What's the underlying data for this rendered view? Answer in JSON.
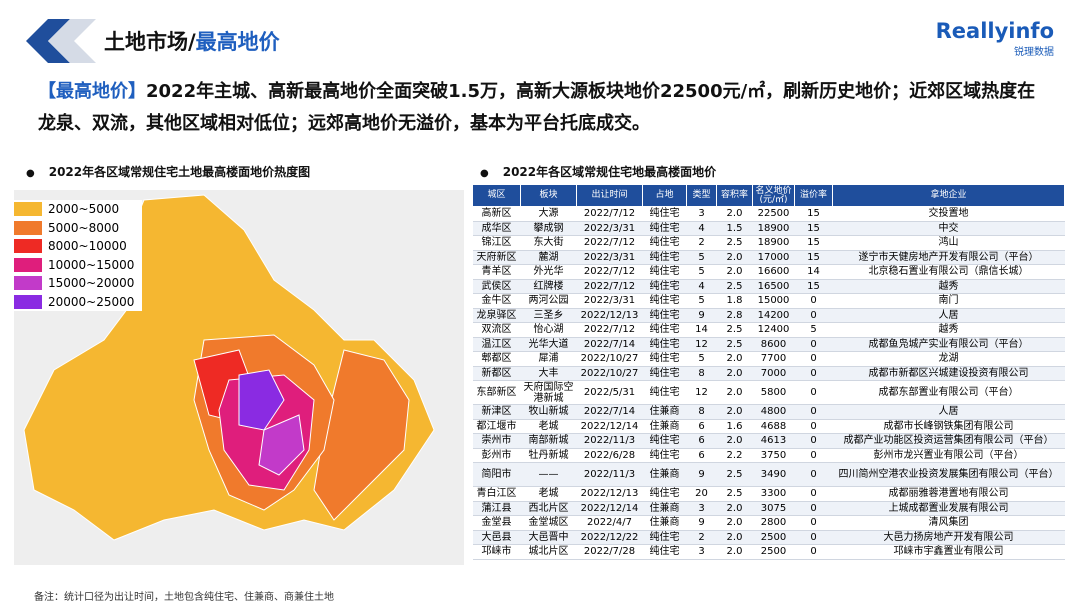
{
  "header": {
    "title_prefix": "土地市场/",
    "title_highlight": "最高地价",
    "logo": "Reallyinfo",
    "logo_sub": "锐理数据"
  },
  "summary": {
    "tag": "【最高地价】",
    "text": "2022年主城、高新最高地价全面突破1.5万，高新大源板块地价22500元/㎡，刷新历史地价；近郊区域热度在龙泉、双流，其他区域相对低位；远郊高地价无溢价，基本为平台托底成交。"
  },
  "map": {
    "title": "2022年各区域常规住宅土地最高楼面地价热度图",
    "legend": [
      {
        "label": "2000~5000",
        "color": "#f5b731"
      },
      {
        "label": "5000~8000",
        "color": "#f07a2c"
      },
      {
        "label": "8000~10000",
        "color": "#ee2a24"
      },
      {
        "label": "10000~15000",
        "color": "#df1e7c"
      },
      {
        "label": "15000~20000",
        "color": "#c23ac9"
      },
      {
        "label": "20000~25000",
        "color": "#8a2be2"
      }
    ]
  },
  "table": {
    "title": "2022年各区域常规住宅地最高楼面地价",
    "headers": [
      "城区",
      "板块",
      "出让时间",
      "占地",
      "类型",
      "容积率",
      "名义地价(元/㎡)",
      "溢价率",
      "拿地企业"
    ],
    "rows": [
      [
        "高新区",
        "大源",
        "2022/7/12",
        "纯住宅",
        "3",
        "2.0",
        "22500",
        "15",
        "交投置地"
      ],
      [
        "成华区",
        "攀成钢",
        "2022/3/31",
        "纯住宅",
        "4",
        "1.5",
        "18900",
        "15",
        "中交"
      ],
      [
        "锦江区",
        "东大街",
        "2022/7/12",
        "纯住宅",
        "2",
        "2.5",
        "18900",
        "15",
        "鸿山"
      ],
      [
        "天府新区",
        "麓湖",
        "2022/3/31",
        "纯住宅",
        "5",
        "2.0",
        "17000",
        "15",
        "遂宁市天健房地产开发有限公司（平台）"
      ],
      [
        "青羊区",
        "外光华",
        "2022/7/12",
        "纯住宅",
        "5",
        "2.0",
        "16600",
        "14",
        "北京稳石置业有限公司（鼎信长城）"
      ],
      [
        "武侯区",
        "红牌楼",
        "2022/7/12",
        "纯住宅",
        "4",
        "2.5",
        "16500",
        "15",
        "越秀"
      ],
      [
        "金牛区",
        "两河公园",
        "2022/3/31",
        "纯住宅",
        "5",
        "1.8",
        "15000",
        "0",
        "南门"
      ],
      [
        "龙泉驿区",
        "三圣乡",
        "2022/12/13",
        "纯住宅",
        "9",
        "2.8",
        "14200",
        "0",
        "人居"
      ],
      [
        "双流区",
        "怡心湖",
        "2022/7/12",
        "纯住宅",
        "14",
        "2.5",
        "12400",
        "5",
        "越秀"
      ],
      [
        "温江区",
        "光华大道",
        "2022/7/14",
        "纯住宅",
        "12",
        "2.5",
        "8600",
        "0",
        "成都鱼凫城产实业有限公司（平台）"
      ],
      [
        "郫都区",
        "犀浦",
        "2022/10/27",
        "纯住宅",
        "5",
        "2.0",
        "7700",
        "0",
        "龙湖"
      ],
      [
        "新都区",
        "大丰",
        "2022/10/27",
        "纯住宅",
        "8",
        "2.0",
        "7000",
        "0",
        "成都市新都区兴城建设投资有限公司"
      ],
      [
        "东部新区",
        "天府国际空港新城",
        "2022/5/31",
        "纯住宅",
        "12",
        "2.0",
        "5800",
        "0",
        "成都东部置业有限公司（平台）"
      ],
      [
        "新津区",
        "牧山新城",
        "2022/7/14",
        "住兼商",
        "8",
        "2.0",
        "4800",
        "0",
        "人居"
      ],
      [
        "都江堰市",
        "老城",
        "2022/12/14",
        "住兼商",
        "6",
        "1.6",
        "4688",
        "0",
        "成都市长峰钢铁集团有限公司"
      ],
      [
        "崇州市",
        "南部新城",
        "2022/11/3",
        "纯住宅",
        "6",
        "2.0",
        "4613",
        "0",
        "成都产业功能区投资运营集团有限公司（平台）"
      ],
      [
        "彭州市",
        "牡丹新城",
        "2022/6/28",
        "纯住宅",
        "6",
        "2.2",
        "3750",
        "0",
        "彭州市龙兴置业有限公司（平台）"
      ],
      [
        "简阳市",
        "——",
        "2022/11/3",
        "住兼商",
        "9",
        "2.5",
        "3490",
        "0",
        "四川简州空港农业投资发展集团有限公司（平台）"
      ],
      [
        "青白江区",
        "老城",
        "2022/12/13",
        "纯住宅",
        "20",
        "2.5",
        "3300",
        "0",
        "成都丽雅蓉港置地有限公司"
      ],
      [
        "蒲江县",
        "西北片区",
        "2022/12/14",
        "住兼商",
        "3",
        "2.0",
        "3075",
        "0",
        "上城成都置业发展有限公司"
      ],
      [
        "金堂县",
        "金堂城区",
        "2022/4/7",
        "住兼商",
        "9",
        "2.0",
        "2800",
        "0",
        "清风集团"
      ],
      [
        "大邑县",
        "大邑晋中",
        "2022/12/22",
        "纯住宅",
        "2",
        "2.0",
        "2500",
        "0",
        "大邑力扬房地产开发有限公司"
      ],
      [
        "邛崃市",
        "城北片区",
        "2022/7/28",
        "纯住宅",
        "3",
        "2.0",
        "2500",
        "0",
        "邛崃市宇鑫置业有限公司"
      ]
    ]
  },
  "footnote": "备注：统计口径为出让时间，土地包含纯住宅、住兼商、商兼住土地"
}
